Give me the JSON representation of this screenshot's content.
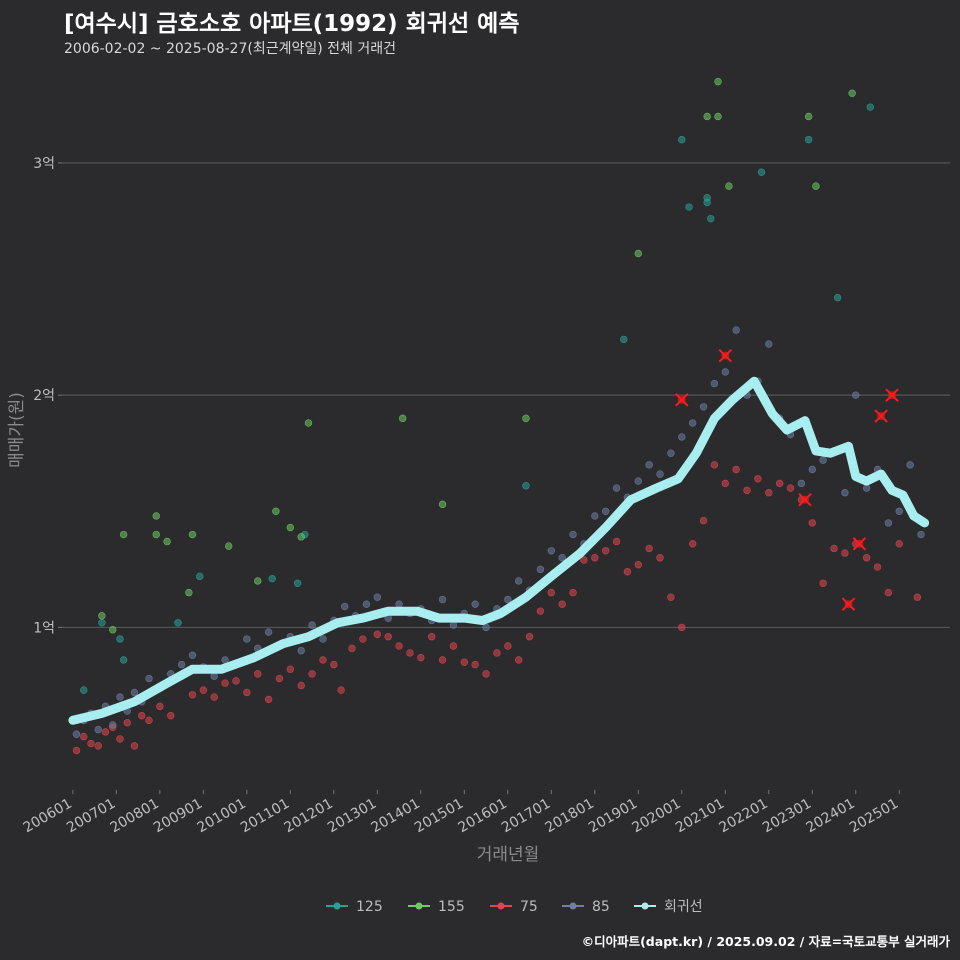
{
  "header": {
    "title": "[여수시] 금호소호 아파트(1992) 회귀선 예측",
    "subtitle": "2006-02-02 ~ 2025-08-27(최근계약일) 전체 거래건"
  },
  "footer": {
    "caption": "©디아파트(dapt.kr) / 2025.09.02 / 자료=국토교통부 실거래가"
  },
  "colors": {
    "background": "#2b2b2d",
    "grid": "#555555",
    "s125": "#2aa198",
    "s155": "#6ecb63",
    "s75": "#e0464f",
    "s85": "#6e7fa3",
    "regression": "#a8eef0",
    "highlight": "#ff1a1a"
  },
  "chart_data": {
    "type": "scatter",
    "xlabel": "거래년월",
    "ylabel": "매매가(원)",
    "x_range": [
      "2005-10",
      "2026-03"
    ],
    "ylim": [
      30000000,
      340000000
    ],
    "grid": true,
    "legend_position": "bottom",
    "y_ticks": [
      {
        "value": 100000000,
        "label": "1억"
      },
      {
        "value": 200000000,
        "label": "2억"
      },
      {
        "value": 300000000,
        "label": "3억"
      }
    ],
    "x_ticks": [
      "200601",
      "200701",
      "200801",
      "200901",
      "201001",
      "201101",
      "201201",
      "201301",
      "201401",
      "201501",
      "201601",
      "201701",
      "201801",
      "201901",
      "202001",
      "202101",
      "202201",
      "202301",
      "202401",
      "202501"
    ],
    "legend": [
      "125",
      "155",
      "75",
      "85",
      "회귀선"
    ],
    "series": [
      {
        "name": "125",
        "color_key": "s125",
        "points": [
          [
            "2006-04",
            73000000
          ],
          [
            "2006-09",
            102000000
          ],
          [
            "2007-02",
            95000000
          ],
          [
            "2007-03",
            86000000
          ],
          [
            "2008-06",
            102000000
          ],
          [
            "2008-12",
            122000000
          ],
          [
            "2010-08",
            121000000
          ],
          [
            "2011-03",
            119000000
          ],
          [
            "2011-05",
            140000000
          ],
          [
            "2016-06",
            161000000
          ],
          [
            "2018-09",
            224000000
          ],
          [
            "2020-01",
            310000000
          ],
          [
            "2020-03",
            281000000
          ],
          [
            "2020-08",
            283000000
          ],
          [
            "2020-08",
            285000000
          ],
          [
            "2020-09",
            276000000
          ],
          [
            "2021-11",
            296000000
          ],
          [
            "2022-12",
            310000000
          ],
          [
            "2023-08",
            242000000
          ],
          [
            "2024-05",
            324000000
          ]
        ]
      },
      {
        "name": "155",
        "color_key": "s155",
        "points": [
          [
            "2006-09",
            105000000
          ],
          [
            "2006-12",
            99000000
          ],
          [
            "2007-03",
            140000000
          ],
          [
            "2007-12",
            148000000
          ],
          [
            "2007-12",
            140000000
          ],
          [
            "2008-03",
            137000000
          ],
          [
            "2008-09",
            115000000
          ],
          [
            "2008-10",
            140000000
          ],
          [
            "2009-08",
            135000000
          ],
          [
            "2010-04",
            120000000
          ],
          [
            "2010-09",
            150000000
          ],
          [
            "2011-01",
            143000000
          ],
          [
            "2011-04",
            139000000
          ],
          [
            "2011-06",
            188000000
          ],
          [
            "2013-08",
            190000000
          ],
          [
            "2014-07",
            153000000
          ],
          [
            "2016-06",
            190000000
          ],
          [
            "2019-01",
            261000000
          ],
          [
            "2020-08",
            320000000
          ],
          [
            "2020-11",
            320000000
          ],
          [
            "2020-11",
            335000000
          ],
          [
            "2021-02",
            290000000
          ],
          [
            "2022-12",
            320000000
          ],
          [
            "2023-02",
            290000000
          ],
          [
            "2023-12",
            330000000
          ]
        ]
      },
      {
        "name": "75",
        "color_key": "s75",
        "points": [
          [
            "2006-02",
            47000000
          ],
          [
            "2006-04",
            53000000
          ],
          [
            "2006-06",
            50000000
          ],
          [
            "2006-08",
            49000000
          ],
          [
            "2006-10",
            55000000
          ],
          [
            "2006-12",
            57000000
          ],
          [
            "2007-02",
            52000000
          ],
          [
            "2007-04",
            59000000
          ],
          [
            "2007-06",
            49000000
          ],
          [
            "2007-08",
            62000000
          ],
          [
            "2007-10",
            60000000
          ],
          [
            "2008-01",
            66000000
          ],
          [
            "2008-04",
            62000000
          ],
          [
            "2008-07",
            79000000
          ],
          [
            "2008-10",
            71000000
          ],
          [
            "2009-01",
            73000000
          ],
          [
            "2009-04",
            70000000
          ],
          [
            "2009-07",
            76000000
          ],
          [
            "2009-10",
            77000000
          ],
          [
            "2010-01",
            72000000
          ],
          [
            "2010-04",
            80000000
          ],
          [
            "2010-07",
            69000000
          ],
          [
            "2010-10",
            78000000
          ],
          [
            "2011-01",
            82000000
          ],
          [
            "2011-04",
            75000000
          ],
          [
            "2011-07",
            80000000
          ],
          [
            "2011-10",
            86000000
          ],
          [
            "2012-01",
            84000000
          ],
          [
            "2012-03",
            73000000
          ],
          [
            "2012-06",
            91000000
          ],
          [
            "2012-09",
            95000000
          ],
          [
            "2013-01",
            97000000
          ],
          [
            "2013-04",
            96000000
          ],
          [
            "2013-07",
            92000000
          ],
          [
            "2013-10",
            89000000
          ],
          [
            "2014-01",
            87000000
          ],
          [
            "2014-04",
            96000000
          ],
          [
            "2014-07",
            86000000
          ],
          [
            "2014-10",
            92000000
          ],
          [
            "2015-01",
            85000000
          ],
          [
            "2015-04",
            84000000
          ],
          [
            "2015-07",
            80000000
          ],
          [
            "2015-10",
            89000000
          ],
          [
            "2016-01",
            92000000
          ],
          [
            "2016-04",
            86000000
          ],
          [
            "2016-07",
            96000000
          ],
          [
            "2016-10",
            107000000
          ],
          [
            "2017-01",
            115000000
          ],
          [
            "2017-04",
            110000000
          ],
          [
            "2017-07",
            115000000
          ],
          [
            "2017-10",
            129000000
          ],
          [
            "2018-01",
            130000000
          ],
          [
            "2018-04",
            133000000
          ],
          [
            "2018-07",
            137000000
          ],
          [
            "2018-10",
            124000000
          ],
          [
            "2019-01",
            127000000
          ],
          [
            "2019-04",
            134000000
          ],
          [
            "2019-07",
            130000000
          ],
          [
            "2019-10",
            113000000
          ],
          [
            "2020-01",
            100000000
          ],
          [
            "2020-04",
            136000000
          ],
          [
            "2020-07",
            146000000
          ],
          [
            "2020-10",
            170000000
          ],
          [
            "2021-01",
            162000000
          ],
          [
            "2021-04",
            168000000
          ],
          [
            "2021-07",
            159000000
          ],
          [
            "2021-10",
            164000000
          ],
          [
            "2022-01",
            158000000
          ],
          [
            "2022-04",
            162000000
          ],
          [
            "2022-07",
            160000000
          ],
          [
            "2022-10",
            155000000
          ],
          [
            "2023-01",
            145000000
          ],
          [
            "2023-04",
            119000000
          ],
          [
            "2023-07",
            134000000
          ],
          [
            "2023-10",
            132000000
          ],
          [
            "2024-01",
            136000000
          ],
          [
            "2024-04",
            130000000
          ],
          [
            "2024-07",
            126000000
          ],
          [
            "2024-10",
            115000000
          ],
          [
            "2025-01",
            136000000
          ],
          [
            "2025-06",
            113000000
          ]
        ]
      },
      {
        "name": "85",
        "color_key": "s85",
        "points": [
          [
            "2006-02",
            54000000
          ],
          [
            "2006-04",
            60000000
          ],
          [
            "2006-06",
            63000000
          ],
          [
            "2006-08",
            56000000
          ],
          [
            "2006-10",
            66000000
          ],
          [
            "2006-12",
            58000000
          ],
          [
            "2007-02",
            70000000
          ],
          [
            "2007-04",
            64000000
          ],
          [
            "2007-06",
            72000000
          ],
          [
            "2007-08",
            68000000
          ],
          [
            "2007-10",
            78000000
          ],
          [
            "2008-01",
            74000000
          ],
          [
            "2008-04",
            80000000
          ],
          [
            "2008-07",
            84000000
          ],
          [
            "2008-10",
            88000000
          ],
          [
            "2009-01",
            83000000
          ],
          [
            "2009-04",
            79000000
          ],
          [
            "2009-07",
            86000000
          ],
          [
            "2009-10",
            84000000
          ],
          [
            "2010-01",
            95000000
          ],
          [
            "2010-04",
            91000000
          ],
          [
            "2010-07",
            98000000
          ],
          [
            "2010-10",
            92000000
          ],
          [
            "2011-01",
            96000000
          ],
          [
            "2011-04",
            90000000
          ],
          [
            "2011-07",
            101000000
          ],
          [
            "2011-10",
            95000000
          ],
          [
            "2012-01",
            103000000
          ],
          [
            "2012-04",
            109000000
          ],
          [
            "2012-07",
            105000000
          ],
          [
            "2012-10",
            110000000
          ],
          [
            "2013-01",
            113000000
          ],
          [
            "2013-04",
            104000000
          ],
          [
            "2013-07",
            110000000
          ],
          [
            "2013-10",
            106000000
          ],
          [
            "2014-01",
            108000000
          ],
          [
            "2014-04",
            103000000
          ],
          [
            "2014-07",
            112000000
          ],
          [
            "2014-10",
            101000000
          ],
          [
            "2015-01",
            106000000
          ],
          [
            "2015-04",
            110000000
          ],
          [
            "2015-07",
            100000000
          ],
          [
            "2015-10",
            108000000
          ],
          [
            "2016-01",
            112000000
          ],
          [
            "2016-04",
            120000000
          ],
          [
            "2016-07",
            116000000
          ],
          [
            "2016-10",
            125000000
          ],
          [
            "2017-01",
            133000000
          ],
          [
            "2017-04",
            130000000
          ],
          [
            "2017-07",
            140000000
          ],
          [
            "2017-10",
            136000000
          ],
          [
            "2018-01",
            148000000
          ],
          [
            "2018-04",
            150000000
          ],
          [
            "2018-07",
            160000000
          ],
          [
            "2018-10",
            156000000
          ],
          [
            "2019-01",
            163000000
          ],
          [
            "2019-04",
            170000000
          ],
          [
            "2019-07",
            166000000
          ],
          [
            "2019-10",
            175000000
          ],
          [
            "2020-01",
            182000000
          ],
          [
            "2020-04",
            188000000
          ],
          [
            "2020-07",
            195000000
          ],
          [
            "2020-10",
            205000000
          ],
          [
            "2021-01",
            210000000
          ],
          [
            "2021-04",
            228000000
          ],
          [
            "2021-07",
            200000000
          ],
          [
            "2021-10",
            206000000
          ],
          [
            "2022-01",
            222000000
          ],
          [
            "2022-04",
            190000000
          ],
          [
            "2022-07",
            183000000
          ],
          [
            "2022-10",
            162000000
          ],
          [
            "2023-01",
            168000000
          ],
          [
            "2023-04",
            172000000
          ],
          [
            "2023-07",
            176000000
          ],
          [
            "2023-10",
            158000000
          ],
          [
            "2024-01",
            200000000
          ],
          [
            "2024-04",
            160000000
          ],
          [
            "2024-07",
            168000000
          ],
          [
            "2024-10",
            145000000
          ],
          [
            "2025-01",
            150000000
          ],
          [
            "2025-04",
            170000000
          ],
          [
            "2025-07",
            140000000
          ]
        ]
      }
    ],
    "regression": {
      "name": "회귀선",
      "color_key": "regression",
      "points": [
        [
          "2006-01",
          60000000
        ],
        [
          "2006-09",
          63000000
        ],
        [
          "2007-06",
          68000000
        ],
        [
          "2008-03",
          76000000
        ],
        [
          "2008-10",
          82000000
        ],
        [
          "2009-06",
          82000000
        ],
        [
          "2010-03",
          87000000
        ],
        [
          "2010-11",
          93000000
        ],
        [
          "2011-06",
          96000000
        ],
        [
          "2012-02",
          102000000
        ],
        [
          "2012-09",
          104000000
        ],
        [
          "2013-04",
          107000000
        ],
        [
          "2013-12",
          107000000
        ],
        [
          "2014-06",
          104000000
        ],
        [
          "2015-01",
          104000000
        ],
        [
          "2015-06",
          103000000
        ],
        [
          "2015-11",
          106000000
        ],
        [
          "2016-06",
          113000000
        ],
        [
          "2017-01",
          122000000
        ],
        [
          "2017-09",
          132000000
        ],
        [
          "2018-04",
          143000000
        ],
        [
          "2018-11",
          155000000
        ],
        [
          "2019-06",
          160000000
        ],
        [
          "2019-12",
          164000000
        ],
        [
          "2020-05",
          175000000
        ],
        [
          "2020-10",
          190000000
        ],
        [
          "2021-03",
          198000000
        ],
        [
          "2021-09",
          206000000
        ],
        [
          "2022-02",
          192000000
        ],
        [
          "2022-06",
          185000000
        ],
        [
          "2022-11",
          189000000
        ],
        [
          "2023-02",
          176000000
        ],
        [
          "2023-06",
          175000000
        ],
        [
          "2023-11",
          178000000
        ],
        [
          "2024-01",
          165000000
        ],
        [
          "2024-04",
          163000000
        ],
        [
          "2024-08",
          166000000
        ],
        [
          "2024-11",
          159000000
        ],
        [
          "2025-02",
          157000000
        ],
        [
          "2025-05",
          148000000
        ],
        [
          "2025-08",
          145000000
        ]
      ]
    },
    "highlights": [
      [
        "2020-01",
        198000000
      ],
      [
        "2021-01",
        217000000
      ],
      [
        "2022-11",
        155000000
      ],
      [
        "2023-11",
        110000000
      ],
      [
        "2024-02",
        136000000
      ],
      [
        "2024-08",
        191000000
      ],
      [
        "2024-11",
        200000000
      ]
    ]
  }
}
